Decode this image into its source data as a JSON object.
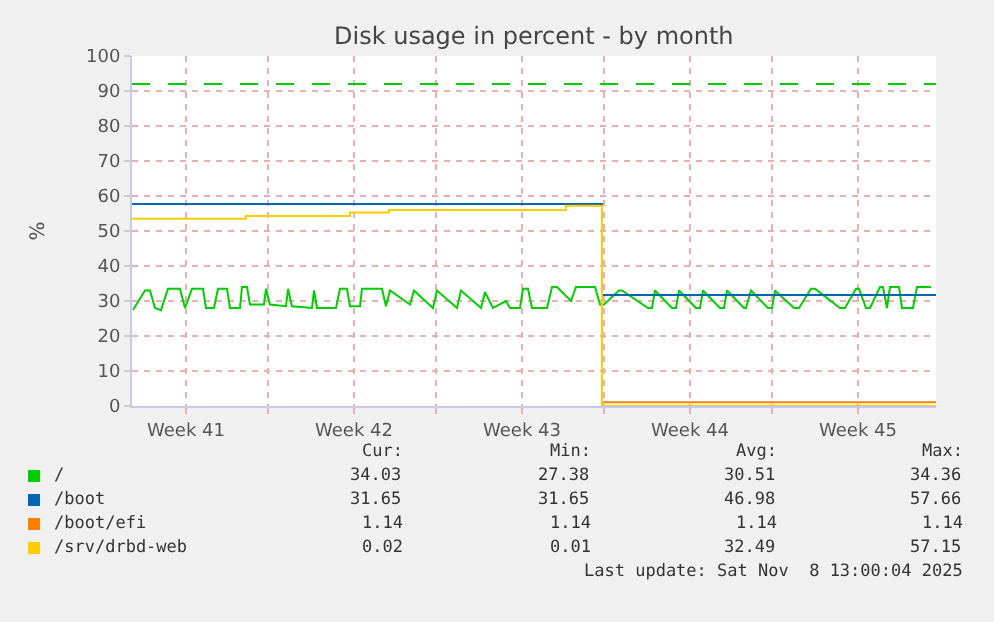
{
  "chart_data": {
    "type": "line",
    "title": "Disk usage in percent - by month",
    "ylabel": "%",
    "xlim": [
      "2025-10-05T00:00",
      "2025-11-07T12:00"
    ],
    "ylim": [
      0,
      100
    ],
    "xticks": [
      {
        "value": "2025-10-07T06:00",
        "label": "Week 41"
      },
      {
        "value": "2025-10-10T16:00",
        "label": null
      },
      {
        "value": "2025-10-14T06:00",
        "label": "Week 42"
      },
      {
        "value": "2025-10-17T16:00",
        "label": null
      },
      {
        "value": "2025-10-21T06:00",
        "label": "Week 43"
      },
      {
        "value": "2025-10-24T16:00",
        "label": null
      },
      {
        "value": "2025-10-28T06:00",
        "label": "Week 44"
      },
      {
        "value": "2025-10-31T16:00",
        "label": null
      },
      {
        "value": "2025-11-04T06:00",
        "label": "Week 45"
      }
    ],
    "yticks": [
      0,
      10,
      20,
      30,
      40,
      50,
      60,
      70,
      80,
      90,
      100
    ],
    "grid": true,
    "legend": "bottom left",
    "series": [
      {
        "name": "/",
        "color": "#00cc00",
        "x": [
          "2025-10-05T01:00",
          "2025-10-05T13:00",
          "2025-10-05T18:00",
          "2025-10-05T23:00",
          "2025-10-06T05:00",
          "2025-10-06T12:00",
          "2025-10-07T00:00",
          "2025-10-07T05:00",
          "2025-10-07T12:00",
          "2025-10-07T23:00",
          "2025-10-08T02:00",
          "2025-10-08T10:00",
          "2025-10-08T14:00",
          "2025-10-08T23:00",
          "2025-10-09T02:00",
          "2025-10-09T12:00",
          "2025-10-09T14:00",
          "2025-10-09T19:00",
          "2025-10-09T22:00",
          "2025-10-10T12:00",
          "2025-10-10T14:00",
          "2025-10-10T18:00",
          "2025-10-11T10:00",
          "2025-10-11T12:00",
          "2025-10-11T16:00",
          "2025-10-12T12:00",
          "2025-10-12T14:00",
          "2025-10-12T17:00",
          "2025-10-13T12:00",
          "2025-10-13T16:00",
          "2025-10-13T23:00",
          "2025-10-14T02:00",
          "2025-10-14T12:00",
          "2025-10-14T14:00",
          "2025-10-15T05:00",
          "2025-10-15T10:00",
          "2025-10-15T14:00",
          "2025-10-15T18:00",
          "2025-10-16T14:00",
          "2025-10-16T18:00",
          "2025-10-17T13:00",
          "2025-10-17T17:00",
          "2025-10-18T13:00",
          "2025-10-18T17:00",
          "2025-10-19T13:00",
          "2025-10-19T17:00",
          "2025-10-20T01:00",
          "2025-10-20T14:00",
          "2025-10-20T18:00",
          "2025-10-21T04:00",
          "2025-10-21T07:00",
          "2025-10-21T12:00",
          "2025-10-21T16:00",
          "2025-10-22T07:00",
          "2025-10-22T12:00",
          "2025-10-22T17:00",
          "2025-10-23T07:00",
          "2025-10-23T12:00",
          "2025-10-24T07:00",
          "2025-10-24T12:00",
          "2025-10-24T16:00",
          "2025-10-25T07:00",
          "2025-10-25T10:00",
          "2025-10-26T12:00",
          "2025-10-26T16:00",
          "2025-10-26T19:00",
          "2025-10-27T12:00",
          "2025-10-27T16:00",
          "2025-10-27T19:00",
          "2025-10-28T12:00",
          "2025-10-28T16:00",
          "2025-10-28T19:00",
          "2025-10-29T12:00",
          "2025-10-29T16:00",
          "2025-10-29T19:00",
          "2025-10-30T12:00",
          "2025-10-30T14:00",
          "2025-10-30T19:00",
          "2025-10-31T12:00",
          "2025-10-31T16:00",
          "2025-10-31T19:00",
          "2025-11-01T14:00",
          "2025-11-01T19:00",
          "2025-11-02T07:00",
          "2025-11-02T11:00",
          "2025-11-03T12:00",
          "2025-11-03T17:00",
          "2025-11-04T04:00",
          "2025-11-04T07:00",
          "2025-11-04T14:00",
          "2025-11-04T18:00",
          "2025-11-05T04:00",
          "2025-11-05T07:00",
          "2025-11-05T11:00",
          "2025-11-05T14:00",
          "2025-11-05T23:00",
          "2025-11-06T02:00",
          "2025-11-06T13:00",
          "2025-11-06T17:00",
          "2025-11-07T07:00"
        ],
        "values": [
          27.4,
          33,
          33,
          28,
          27.4,
          33.5,
          33.5,
          28,
          33.5,
          33.5,
          28,
          28,
          33.5,
          33.5,
          28,
          28,
          34,
          34,
          29,
          29,
          33.5,
          29,
          28.5,
          33.5,
          28.5,
          28,
          33,
          28,
          28,
          33.5,
          33.5,
          28.5,
          28.5,
          33.5,
          33.5,
          33.5,
          28.5,
          33,
          29,
          33,
          28,
          33,
          28,
          33,
          28,
          32.5,
          28,
          30,
          28,
          28,
          33.5,
          33.5,
          28,
          28,
          34,
          34,
          30,
          34,
          34,
          29,
          29,
          33,
          33,
          28,
          28,
          33,
          28,
          28,
          33,
          28,
          28,
          33,
          28,
          28,
          33,
          28,
          28,
          33,
          28,
          28,
          33,
          28,
          28,
          33.5,
          33.5,
          28,
          28,
          33.5,
          33.5,
          28,
          28,
          34,
          34,
          28,
          34,
          34,
          28,
          28,
          34,
          34
        ]
      },
      {
        "name": "/boot",
        "color": "#0066b3",
        "type": "step",
        "x": [
          "2025-10-05T00:00",
          "2025-10-24T14:00",
          "2025-11-07T12:00"
        ],
        "values": [
          57.7,
          31.7,
          31.7
        ]
      },
      {
        "name": "/boot/efi",
        "color": "#ff8000",
        "type": "step",
        "x": [
          "2025-10-24T14:00",
          "2025-11-07T12:00"
        ],
        "values": [
          1.1,
          1.1
        ]
      },
      {
        "name": "/srv/drbd-web",
        "color": "#ffcc00",
        "type": "step",
        "x": [
          "2025-10-05T00:00",
          "2025-10-09T18:00",
          "2025-10-14T02:00",
          "2025-10-15T17:00",
          "2025-10-23T02:00",
          "2025-10-24T14:00",
          "2025-11-07T12:00"
        ],
        "values": [
          53.5,
          54.3,
          55.3,
          56,
          57.2,
          0,
          0
        ]
      }
    ],
    "ref_lines": [
      {
        "axis": "y",
        "value": 92,
        "color": "#00cc00",
        "line_style": "dashed"
      }
    ],
    "annotations": [
      "Cur:",
      "Min:",
      "Avg:",
      "Max:",
      "34.03",
      "27.38",
      "30.51",
      "34.36",
      "31.65",
      "31.65",
      "46.98",
      "57.66",
      "1.14",
      "1.14",
      "1.14",
      "1.14",
      "0.02",
      "0.01",
      "32.49",
      "57.15",
      "Last update: Sat Nov  8 13:00:04 2025"
    ]
  }
}
